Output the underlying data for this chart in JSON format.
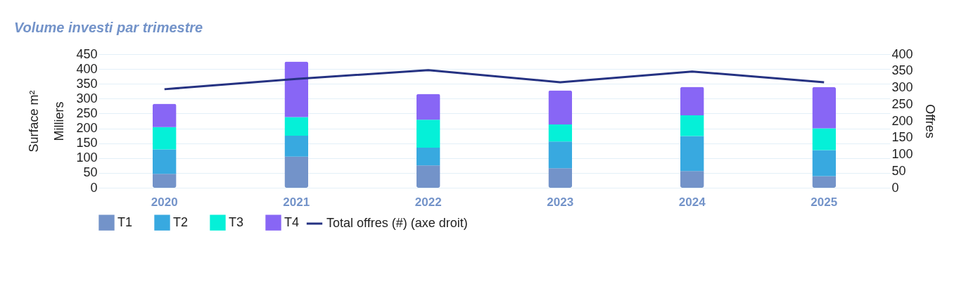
{
  "chart_data": {
    "type": "bar",
    "title": "Volume investi par trimestre",
    "categories": [
      "2020",
      "2021",
      "2022",
      "2023",
      "2024",
      "2025"
    ],
    "stacked": true,
    "series": [
      {
        "name": "T1",
        "color": "#7393c9",
        "values": [
          47,
          105,
          75,
          66,
          56,
          39
        ]
      },
      {
        "name": "T2",
        "color": "#38a9e0",
        "values": [
          82,
          70,
          60,
          90,
          118,
          88
        ]
      },
      {
        "name": "T3",
        "color": "#05f0d8",
        "values": [
          75,
          63,
          94,
          57,
          70,
          73
        ]
      },
      {
        "name": "T4",
        "color": "#8866f5",
        "values": [
          79,
          187,
          87,
          115,
          96,
          139
        ]
      },
      {
        "name": "Total offres (#) (axe droit)",
        "type": "line",
        "axis": "y2",
        "color": "#253282",
        "values": [
          295,
          326,
          352,
          316,
          348,
          316
        ]
      }
    ],
    "ylabel": "Surface m²\nMilliers",
    "y2label": "Offres",
    "ylim": [
      0,
      450
    ],
    "yticks": [
      0,
      50,
      100,
      150,
      200,
      250,
      300,
      350,
      400,
      450
    ],
    "y2lim": [
      0,
      400
    ],
    "y2ticks": [
      0,
      50,
      100,
      150,
      200,
      250,
      300,
      350,
      400
    ],
    "grid": "y",
    "legend": "bottom"
  }
}
